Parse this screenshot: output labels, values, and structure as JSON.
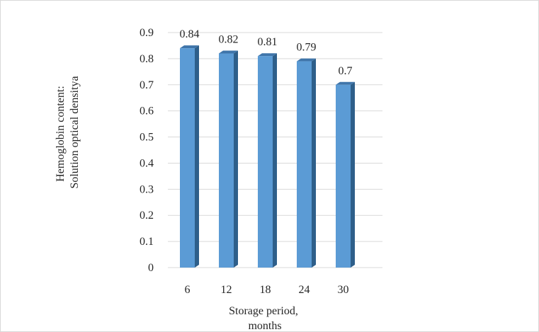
{
  "chart_data": {
    "type": "bar",
    "categories": [
      "6",
      "12",
      "18",
      "24",
      "30"
    ],
    "values": [
      0.84,
      0.82,
      0.81,
      0.79,
      0.7
    ],
    "data_labels": [
      "0.84",
      "0.82",
      "0.81",
      "0.79",
      "0.7"
    ],
    "yticks": [
      "0",
      "0.1",
      "0.2",
      "0.3",
      "0.4",
      "0.5",
      "0.6",
      "0.7",
      "0.8",
      "0.9"
    ],
    "ylim": [
      0,
      0.9
    ],
    "title": "",
    "xlabel": [
      "Storage period,",
      "months"
    ],
    "ylabel": [
      "Hemoglobin content:",
      "Solution optical densitya"
    ],
    "grid": true,
    "legend": "none",
    "bar_color": "#5b9bd5",
    "bar_side_color": "#2e5f8a",
    "bar_top_color": "#3f75aa",
    "gridline_color": "#d9d9d9"
  }
}
